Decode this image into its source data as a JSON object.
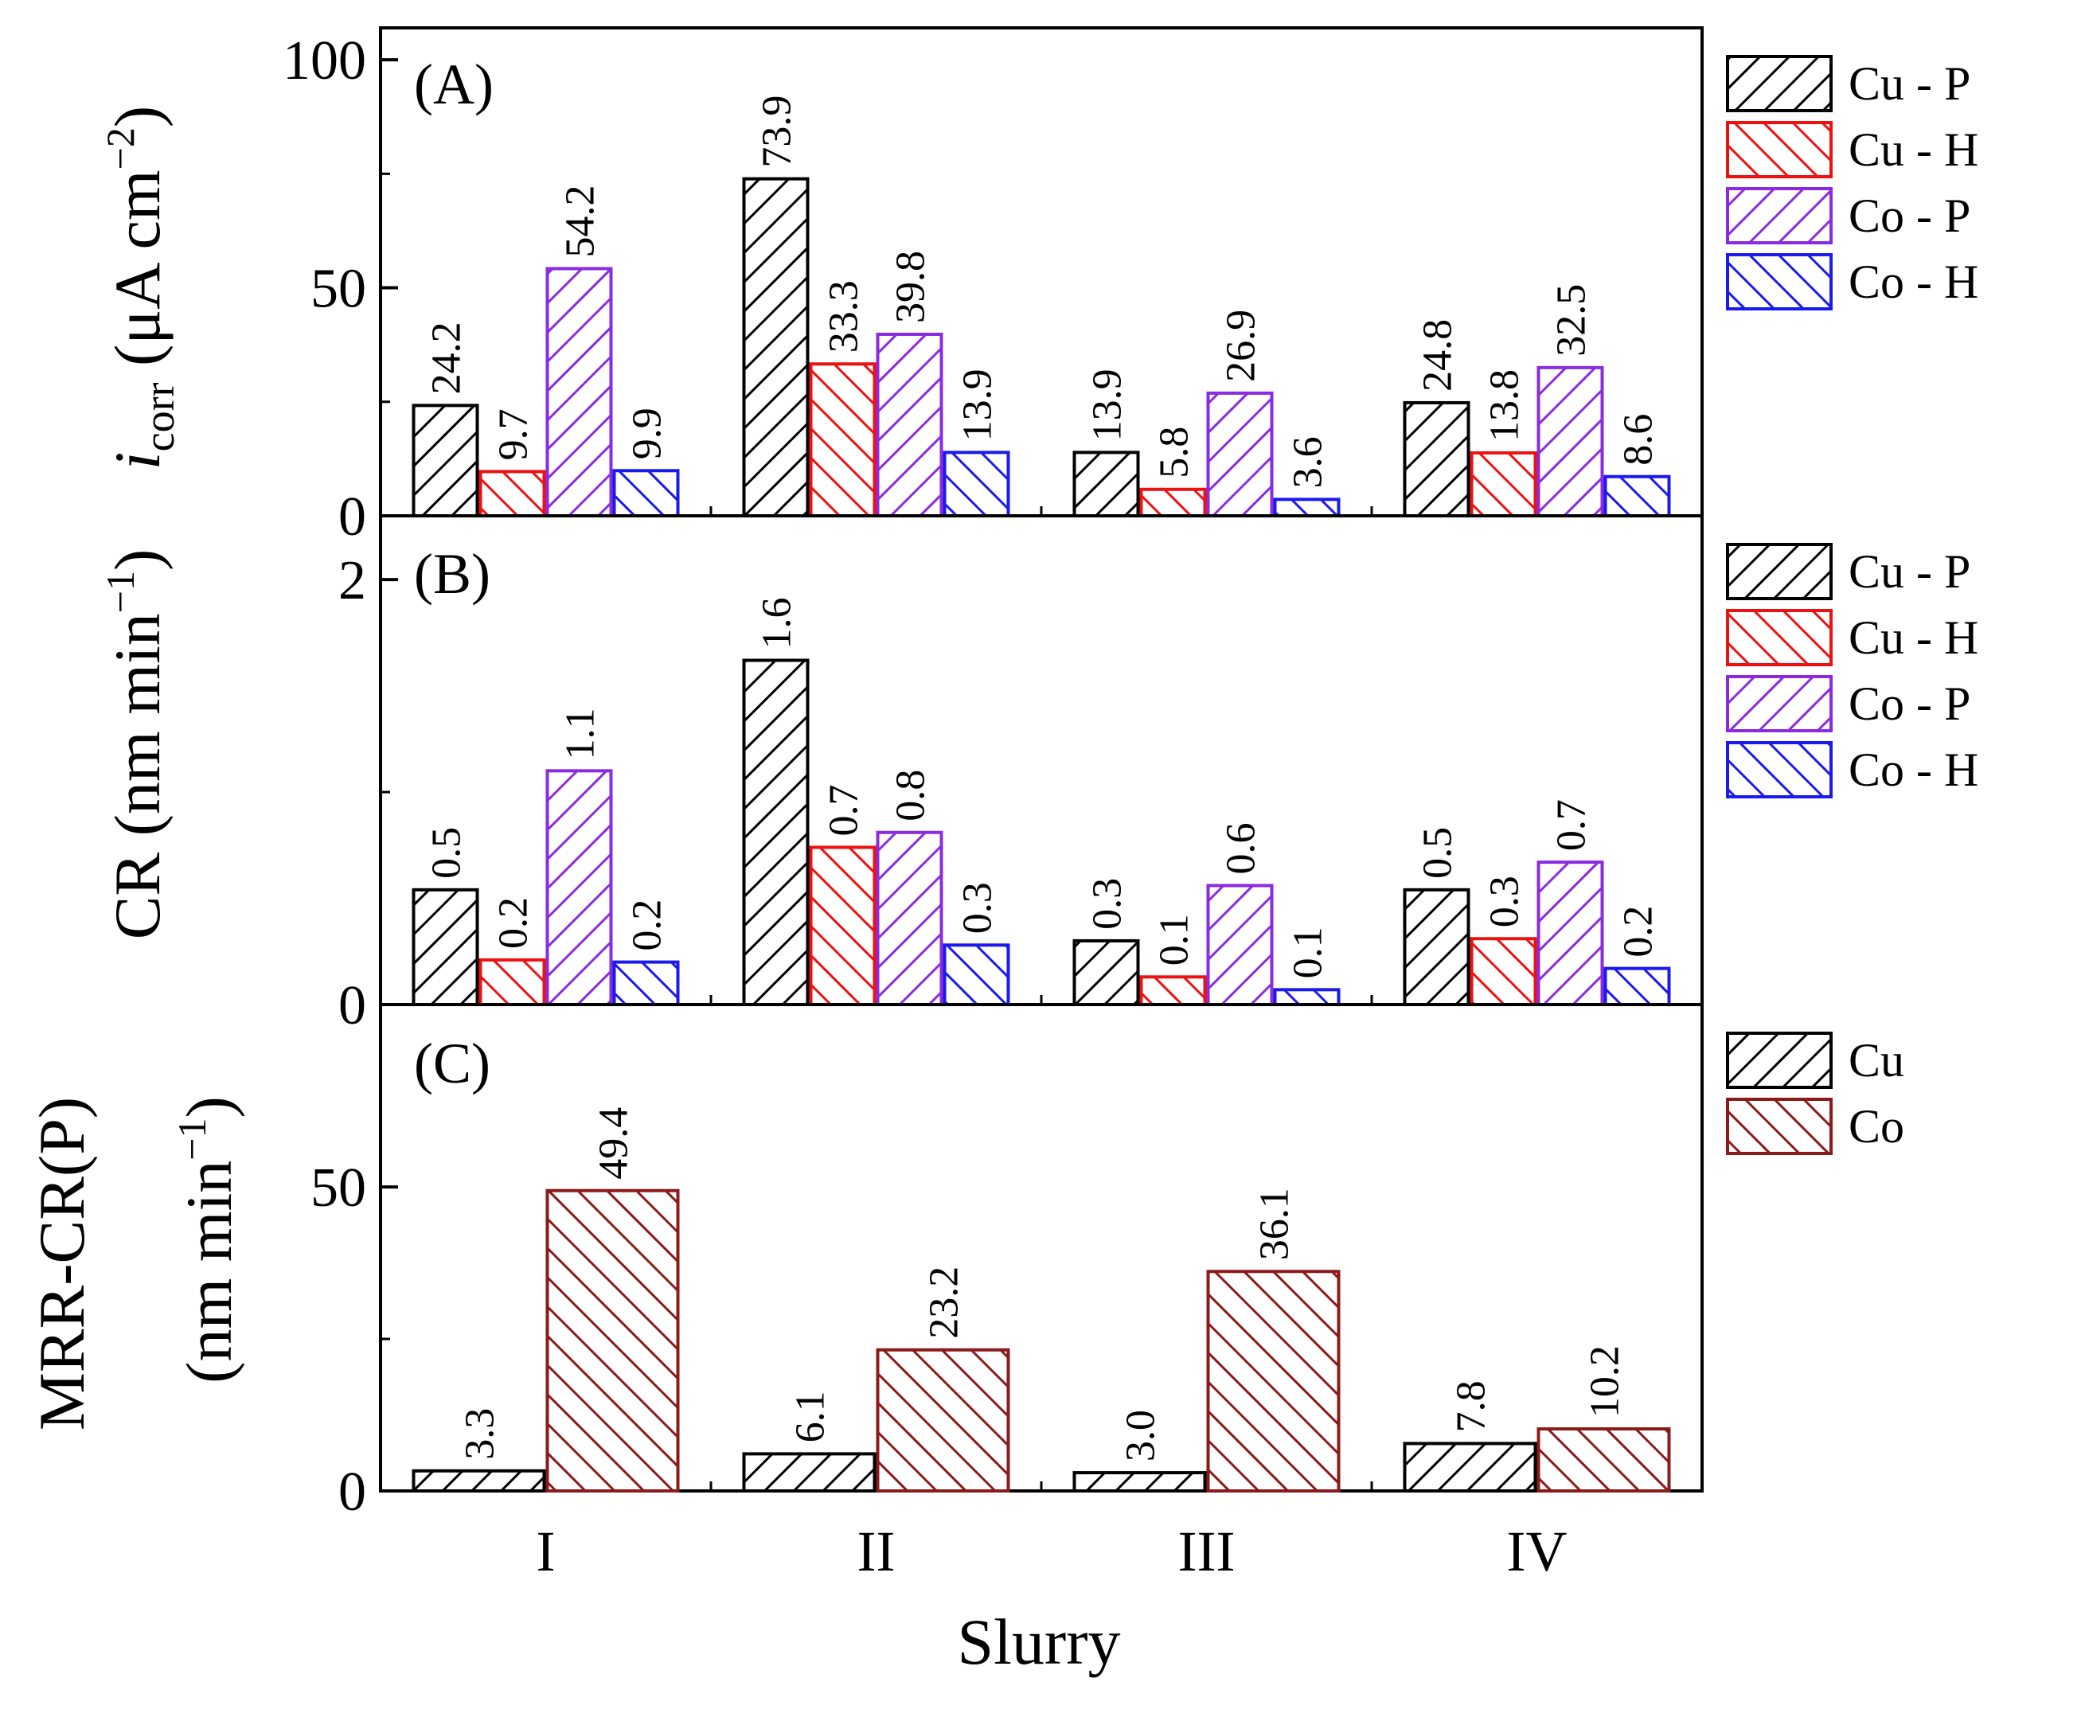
{
  "chart_data": [
    {
      "panel": "(A)",
      "type": "bar",
      "categories": [
        "I",
        "II",
        "III",
        "IV"
      ],
      "ylabel_italic": "i",
      "ylabel_sub": "corr",
      "ylabel_unit": "(μA cm",
      "ylabel_sup": "−2",
      "ylabel_close": ")",
      "ylim": [
        0,
        107
      ],
      "yticks": [
        0,
        50,
        100
      ],
      "legend_position": "right",
      "series": [
        {
          "name": "Cu - P",
          "color": "#000000",
          "hatch": "fwd",
          "values": [
            24.2,
            73.9,
            13.9,
            24.8
          ],
          "labels": [
            "24.2",
            "73.9",
            "13.9",
            "24.8"
          ]
        },
        {
          "name": "Cu - H",
          "color": "#ee1111",
          "hatch": "back",
          "values": [
            9.7,
            33.3,
            5.8,
            13.8
          ],
          "labels": [
            "9.7",
            "33.3",
            "5.8",
            "13.8"
          ]
        },
        {
          "name": "Co - P",
          "color": "#8a2be2",
          "hatch": "fwd",
          "values": [
            54.2,
            39.8,
            26.9,
            32.5
          ],
          "labels": [
            "54.2",
            "39.8",
            "26.9",
            "32.5"
          ]
        },
        {
          "name": "Co - H",
          "color": "#1a1aee",
          "hatch": "back",
          "values": [
            9.9,
            13.9,
            3.6,
            8.6
          ],
          "labels": [
            "9.9",
            "13.9",
            "3.6",
            "8.6"
          ]
        }
      ]
    },
    {
      "panel": "(B)",
      "type": "bar",
      "categories": [
        "I",
        "II",
        "III",
        "IV"
      ],
      "ylabel_unit": "CR (nm min",
      "ylabel_sup": "−1",
      "ylabel_close": ")",
      "ylim": [
        0,
        2.3
      ],
      "yticks": [
        0,
        2
      ],
      "legend_position": "right",
      "series": [
        {
          "name": "Cu - P",
          "color": "#000000",
          "hatch": "fwd",
          "values": [
            0.54,
            1.62,
            0.3,
            0.54
          ],
          "labels": [
            "0.5",
            "1.6",
            "0.3",
            "0.5"
          ]
        },
        {
          "name": "Cu - H",
          "color": "#ee1111",
          "hatch": "back",
          "values": [
            0.21,
            0.74,
            0.13,
            0.31
          ],
          "labels": [
            "0.2",
            "0.7",
            "0.1",
            "0.3"
          ]
        },
        {
          "name": "Co - P",
          "color": "#8a2be2",
          "hatch": "fwd",
          "values": [
            1.1,
            0.81,
            0.56,
            0.67
          ],
          "labels": [
            "1.1",
            "0.8",
            "0.6",
            "0.7"
          ]
        },
        {
          "name": "Co - H",
          "color": "#1a1aee",
          "hatch": "back",
          "values": [
            0.2,
            0.28,
            0.07,
            0.17
          ],
          "labels": [
            "0.2",
            "0.3",
            "0.1",
            "0.2"
          ]
        }
      ]
    },
    {
      "panel": "(C)",
      "type": "bar",
      "categories": [
        "I",
        "II",
        "III",
        "IV"
      ],
      "ylabel_line1": "MRR-CR(P)",
      "ylabel_unit": "(nm min",
      "ylabel_sup": "−1",
      "ylabel_close": ")",
      "ylim": [
        0,
        80
      ],
      "yticks": [
        0,
        50
      ],
      "legend_position": "right",
      "series": [
        {
          "name": "Cu",
          "color": "#000000",
          "hatch": "fwd",
          "values": [
            3.3,
            6.1,
            3.0,
            7.8
          ],
          "labels": [
            "3.3",
            "6.1",
            "3.0",
            "7.8"
          ]
        },
        {
          "name": "Co",
          "color": "#8b1a1a",
          "hatch": "back",
          "values": [
            49.4,
            23.2,
            36.1,
            10.2
          ],
          "labels": [
            "49.4",
            "23.2",
            "36.1",
            "10.2"
          ]
        }
      ]
    }
  ],
  "xlabel": "Slurry"
}
